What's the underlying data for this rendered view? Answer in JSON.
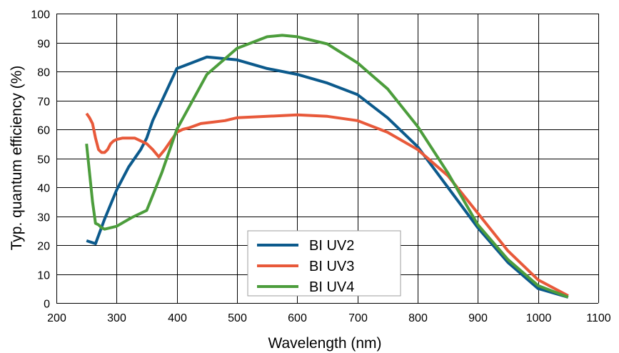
{
  "chart_data": {
    "type": "line",
    "title": "",
    "xlabel": "Wavelength (nm)",
    "ylabel": "Typ. quantum efficiency (%)",
    "xlim": [
      200,
      1100
    ],
    "ylim": [
      0,
      100
    ],
    "xticks": [
      200,
      300,
      400,
      500,
      600,
      700,
      800,
      900,
      1000,
      1100
    ],
    "yticks": [
      0,
      10,
      20,
      30,
      40,
      50,
      60,
      70,
      80,
      90,
      100
    ],
    "grid": true,
    "legend_position": "bottom-center",
    "series": [
      {
        "name": "BI UV2",
        "color": "#0c5a8c",
        "x": [
          250,
          265,
          280,
          300,
          320,
          340,
          350,
          360,
          380,
          400,
          425,
          450,
          475,
          500,
          550,
          600,
          650,
          700,
          750,
          800,
          850,
          900,
          950,
          1000,
          1050
        ],
        "y": [
          21.5,
          20.5,
          29,
          39,
          47,
          53,
          57,
          63,
          72,
          81,
          83,
          85,
          84.5,
          84,
          81,
          79,
          76,
          72,
          64,
          54,
          40,
          26,
          14,
          5,
          2
        ]
      },
      {
        "name": "BI UV3",
        "color": "#e8593a",
        "x": [
          250,
          255,
          260,
          265,
          270,
          275,
          280,
          285,
          290,
          295,
          300,
          310,
          320,
          330,
          340,
          350,
          360,
          370,
          380,
          390,
          400,
          410,
          420,
          440,
          460,
          480,
          500,
          550,
          600,
          650,
          700,
          750,
          800,
          850,
          900,
          950,
          1000,
          1050
        ],
        "y": [
          65.5,
          64,
          62,
          57,
          53,
          52,
          52,
          53,
          55,
          56,
          56.5,
          57,
          57,
          57,
          56,
          55,
          53,
          50.5,
          53,
          56,
          59,
          60,
          60.5,
          62,
          62.5,
          63,
          64,
          64.5,
          65,
          64.5,
          63,
          59,
          53,
          44,
          31,
          18,
          8,
          2.5
        ]
      },
      {
        "name": "BI UV4",
        "color": "#4c9d3c",
        "x": [
          250,
          255,
          260,
          265,
          270,
          275,
          280,
          300,
          325,
          350,
          375,
          400,
          450,
          500,
          550,
          575,
          600,
          650,
          700,
          750,
          800,
          850,
          900,
          950,
          1000,
          1050
        ],
        "y": [
          55,
          45,
          35,
          27.5,
          27,
          26,
          25.5,
          26.5,
          29.5,
          32,
          45,
          60,
          79,
          88,
          92,
          92.5,
          92,
          89.5,
          83,
          74,
          61,
          45,
          27,
          15,
          6,
          2
        ]
      }
    ]
  }
}
